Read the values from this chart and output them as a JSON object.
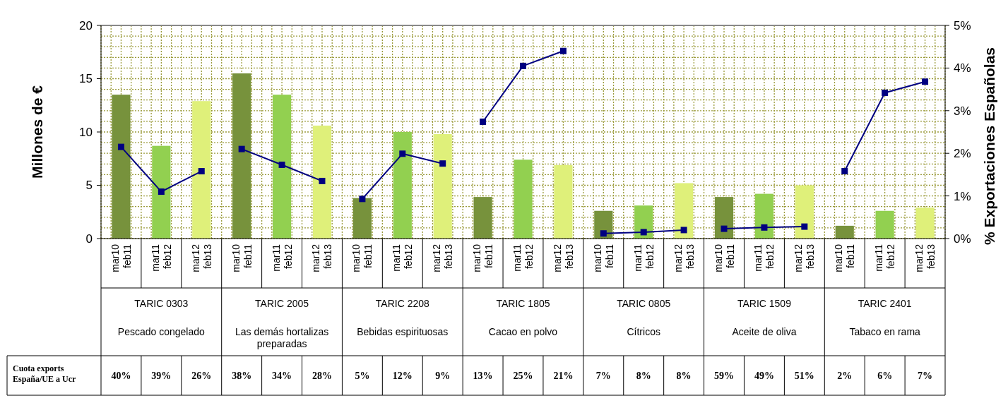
{
  "chart_data": {
    "type": "bar",
    "ylabel": "Millones de €",
    "y2label": "% Exportaciones Españolas",
    "categories": [
      "mar10 feb11",
      "mar11 feb12",
      "mar12 feb13",
      "mar10 feb11",
      "mar11 feb12",
      "mar12 feb13",
      "mar10 feb11",
      "mar11 feb12",
      "mar12 feb13",
      "mar10 feb11",
      "mar11 feb12",
      "mar12 feb13",
      "mar10 feb11",
      "mar11 feb12",
      "mar12 feb13",
      "mar10 feb11",
      "mar11 feb12",
      "mar12 feb13",
      "mar10 feb11",
      "mar11 feb12",
      "mar12 feb13"
    ],
    "series": [
      {
        "colors": [
          "#77923c",
          "#92d050",
          "#dff07a",
          "#77923c",
          "#92d050",
          "#dff07a",
          "#77923c",
          "#92d050",
          "#dff07a",
          "#77923c",
          "#92d050",
          "#dff07a",
          "#77923c",
          "#92d050",
          "#dff07a",
          "#77923c",
          "#92d050",
          "#dff07a",
          "#77923c",
          "#92d050",
          "#dff07a"
        ],
        "values": [
          13.5,
          8.7,
          12.9,
          15.5,
          13.5,
          10.6,
          3.8,
          10.0,
          9.8,
          3.9,
          7.4,
          6.9,
          2.6,
          3.1,
          5.2,
          3.9,
          4.2,
          5.0,
          1.2,
          2.6,
          2.9
        ]
      },
      {
        "type": "line",
        "axis": "y2",
        "color": "#000080",
        "values": [
          2.15,
          1.1,
          1.58,
          null,
          null,
          null,
          null,
          null,
          null,
          null,
          null,
          null,
          null,
          null,
          null,
          null,
          null,
          null,
          null,
          null,
          null
        ]
      },
      {
        "type": "line",
        "axis": "y2",
        "color": "#000080",
        "values": [
          null,
          null,
          null,
          2.1,
          1.73,
          1.35,
          null,
          null,
          null,
          null,
          null,
          null,
          null,
          null,
          null,
          null,
          null,
          null,
          null,
          null,
          null
        ]
      },
      {
        "type": "line",
        "axis": "y2",
        "color": "#000080",
        "values": [
          null,
          null,
          null,
          null,
          null,
          null,
          0.93,
          1.99,
          1.76,
          null,
          null,
          null,
          null,
          null,
          null,
          null,
          null,
          null,
          null,
          null,
          null
        ]
      },
      {
        "type": "line",
        "axis": "y2",
        "color": "#000080",
        "values": [
          null,
          null,
          null,
          null,
          null,
          null,
          null,
          null,
          null,
          2.74,
          4.05,
          4.4,
          null,
          null,
          null,
          null,
          null,
          null,
          null,
          null,
          null
        ]
      },
      {
        "type": "line",
        "axis": "y2",
        "color": "#000080",
        "values": [
          null,
          null,
          null,
          null,
          null,
          null,
          null,
          null,
          null,
          null,
          null,
          null,
          0.12,
          0.15,
          0.2,
          null,
          null,
          null,
          null,
          null,
          null
        ]
      },
      {
        "type": "line",
        "axis": "y2",
        "color": "#000080",
        "values": [
          null,
          null,
          null,
          null,
          null,
          null,
          null,
          null,
          null,
          null,
          null,
          null,
          null,
          null,
          null,
          0.23,
          0.26,
          0.28,
          null,
          null,
          null
        ]
      },
      {
        "type": "line",
        "axis": "y2",
        "color": "#000080",
        "values": [
          null,
          null,
          null,
          null,
          null,
          null,
          null,
          null,
          null,
          null,
          null,
          null,
          null,
          null,
          null,
          null,
          null,
          null,
          1.58,
          3.42,
          3.68
        ]
      }
    ],
    "ylim": [
      0,
      20
    ],
    "yticks": [
      0,
      {
        "value": 1,
        "label": null
      },
      {
        "value": 2,
        "label": null
      },
      {
        "value": 3,
        "label": null
      },
      {
        "value": 4,
        "label": null
      },
      5,
      {
        "value": 6,
        "label": null
      },
      {
        "value": 7,
        "label": null
      },
      {
        "value": 8,
        "label": null
      },
      {
        "value": 9,
        "label": null
      },
      10,
      {
        "value": 11,
        "label": null
      },
      {
        "value": 12,
        "label": null
      },
      {
        "value": 13,
        "label": null
      },
      {
        "value": 14,
        "label": null
      },
      15,
      {
        "value": 16,
        "label": null
      },
      {
        "value": 17,
        "label": null
      },
      {
        "value": 18,
        "label": null
      },
      {
        "value": 19,
        "label": null
      },
      20
    ],
    "y2lim": [
      0,
      5
    ],
    "y2ticks": [
      {
        "value": 0,
        "label": "0%"
      },
      {
        "value": 1,
        "label": "1%"
      },
      {
        "value": 2,
        "label": "2%"
      },
      {
        "value": 3,
        "label": "3%"
      },
      {
        "value": 4,
        "label": "4%"
      },
      {
        "value": 5,
        "label": "5%"
      }
    ],
    "grid": true,
    "marker": "square",
    "line_style": "solid",
    "annotations": [
      "TARIC 0303",
      "TARIC 2005",
      "TARIC 2208",
      "TARIC 1805",
      "TARIC 0805",
      "TARIC 1509",
      "TARIC 2401",
      "Pescado congelado",
      "Las demás hortalizas preparadas",
      "Bebidas espirituosas",
      "Cacao en polvo",
      "Cítricos",
      "Aceite de oliva",
      "Tabaco en rama",
      "Cuota exports España/UE a Ucr",
      "40%",
      "39%",
      "26%",
      "38%",
      "34%",
      "28%",
      "5%",
      "12%",
      "9%",
      "13%",
      "25%",
      "21%",
      "7%",
      "8%",
      "8%",
      "59%",
      "49%",
      "51%",
      "2%",
      "6%",
      "7%"
    ]
  }
}
